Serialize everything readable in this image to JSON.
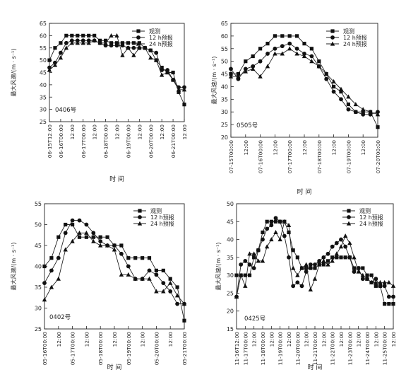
{
  "chart_data": [
    {
      "type": "line",
      "storm_label": "0406号",
      "ylabel": "最大风速/(m · s⁻¹)",
      "xlabel": "时 间",
      "ylim": [
        25,
        65
      ],
      "yticks": [
        25,
        30,
        35,
        40,
        45,
        50,
        55,
        60,
        65
      ],
      "x_range": [
        0,
        24
      ],
      "xticks": [
        {
          "x": 0,
          "label": "06-15T12:00"
        },
        {
          "x": 2,
          "label": "06-16T00:00"
        },
        {
          "x": 4,
          "label": "12:00"
        },
        {
          "x": 6,
          "label": "06-17T00:00"
        },
        {
          "x": 8,
          "label": "12:00"
        },
        {
          "x": 10,
          "label": "06-18T00:00"
        },
        {
          "x": 12,
          "label": "12:00"
        },
        {
          "x": 14,
          "label": "06-19T00:00"
        },
        {
          "x": 16,
          "label": "12:00"
        },
        {
          "x": 18,
          "label": "06-20T00:00"
        },
        {
          "x": 20,
          "label": "12:00"
        },
        {
          "x": 22,
          "label": "06-21T00:00"
        },
        {
          "x": 24,
          "label": "12:00"
        }
      ],
      "legend": [
        "观测",
        "12 h预报",
        "24 h预报"
      ],
      "legend_position": "top-right",
      "series": [
        {
          "name": "观测",
          "marker": "square",
          "x": [
            0,
            1,
            2,
            3,
            4,
            5,
            6,
            7,
            8,
            9,
            10,
            11,
            12,
            13,
            14,
            15,
            16,
            17,
            18,
            19,
            20,
            21,
            22,
            23,
            24
          ],
          "values": [
            50,
            55,
            57,
            60,
            60,
            60,
            60,
            60,
            60,
            58,
            58,
            57,
            57,
            57,
            57,
            57,
            57,
            55,
            54,
            50,
            47,
            45,
            45,
            37,
            32
          ]
        },
        {
          "name": "12 h预报",
          "marker": "circle",
          "x": [
            0,
            1,
            2,
            3,
            4,
            5,
            6,
            7,
            8,
            9,
            10,
            11,
            12,
            13,
            14,
            15,
            16,
            17,
            18,
            19,
            20,
            21,
            22,
            23,
            24
          ],
          "values": [
            47,
            49,
            53,
            57,
            58,
            58,
            58,
            58,
            58,
            57,
            56,
            56,
            56,
            56,
            55,
            55,
            55,
            55,
            54,
            53,
            46,
            46,
            42,
            39,
            39
          ]
        },
        {
          "name": "24 h预报",
          "marker": "triangle",
          "x": [
            0,
            1,
            2,
            3,
            4,
            5,
            6,
            7,
            8,
            9,
            10,
            11,
            12,
            13,
            14,
            15,
            16,
            17,
            18,
            19,
            20,
            21,
            22,
            23,
            24
          ],
          "values": [
            46,
            48,
            51,
            55,
            57,
            57,
            57,
            57,
            58,
            57,
            57,
            60,
            60,
            52,
            55,
            52,
            55,
            55,
            51,
            50,
            44,
            45,
            42,
            38,
            38
          ]
        }
      ]
    },
    {
      "type": "line",
      "storm_label": "0505号",
      "ylabel": "最大风速/(m · s⁻¹)",
      "xlabel": "时 间",
      "ylim": [
        20,
        65
      ],
      "yticks": [
        20,
        25,
        30,
        35,
        40,
        45,
        50,
        55,
        60,
        65
      ],
      "x_range": [
        0,
        20
      ],
      "xticks": [
        {
          "x": 0,
          "label": "07-15T00:00"
        },
        {
          "x": 2,
          "label": "12:00"
        },
        {
          "x": 4,
          "label": "07-16T00:00"
        },
        {
          "x": 6,
          "label": "12:00"
        },
        {
          "x": 8,
          "label": "07-17T00:00"
        },
        {
          "x": 10,
          "label": "12:00"
        },
        {
          "x": 12,
          "label": "07-18T00:00"
        },
        {
          "x": 14,
          "label": "12:00"
        },
        {
          "x": 16,
          "label": "07-19T00:00"
        },
        {
          "x": 18,
          "label": "12:00"
        },
        {
          "x": 20,
          "label": "07-20T00:00"
        }
      ],
      "legend": [
        "观测",
        "12 h预报",
        "24 h预报"
      ],
      "legend_position": "top-right",
      "series": [
        {
          "name": "观测",
          "marker": "square",
          "x": [
            0,
            1,
            2,
            3,
            4,
            5,
            6,
            7,
            8,
            9,
            10,
            11,
            12,
            13,
            14,
            15,
            16,
            17,
            18,
            19,
            20
          ],
          "values": [
            45,
            45,
            50,
            52,
            55,
            57,
            60,
            60,
            60,
            60,
            57,
            55,
            50,
            45,
            40,
            38,
            33,
            30,
            30,
            30,
            24
          ]
        },
        {
          "name": "12 h预报",
          "marker": "circle",
          "x": [
            0,
            1,
            2,
            3,
            4,
            5,
            6,
            7,
            8,
            9,
            10,
            11,
            12,
            13,
            14,
            15,
            16,
            17,
            18,
            19,
            20
          ],
          "values": [
            47,
            43,
            47,
            48,
            50,
            53,
            55,
            56,
            57,
            55,
            53,
            52,
            48,
            43,
            38,
            35,
            31,
            30,
            29,
            29,
            30
          ]
        },
        {
          "name": "24 h预报",
          "marker": "triangle",
          "x": [
            0,
            1,
            2,
            3,
            4,
            5,
            6,
            7,
            8,
            9,
            10,
            11,
            12,
            13,
            14,
            15,
            16,
            17,
            18,
            19,
            20
          ],
          "values": [
            44,
            44,
            46,
            47,
            44,
            48,
            53,
            53,
            55,
            53,
            52,
            50,
            48,
            45,
            42,
            39,
            36,
            33,
            31,
            30,
            29
          ]
        }
      ]
    },
    {
      "type": "line",
      "storm_label": "0402号",
      "ylabel": "最大风速/(m · s⁻¹)",
      "xlabel": "时 间",
      "ylim": [
        25,
        55
      ],
      "yticks": [
        25,
        30,
        35,
        40,
        45,
        50,
        55
      ],
      "x_range": [
        0,
        20
      ],
      "xticks": [
        {
          "x": 0,
          "label": "05-16T00:00"
        },
        {
          "x": 2,
          "label": "12:00"
        },
        {
          "x": 4,
          "label": "05-17T00:00"
        },
        {
          "x": 6,
          "label": "12:00"
        },
        {
          "x": 8,
          "label": "05-18T00:00"
        },
        {
          "x": 10,
          "label": "12:00"
        },
        {
          "x": 12,
          "label": "05-19T00:00"
        },
        {
          "x": 14,
          "label": "12:00"
        },
        {
          "x": 16,
          "label": "05-20T00:00"
        },
        {
          "x": 18,
          "label": "12:00"
        },
        {
          "x": 20,
          "label": "05-21T00:00"
        }
      ],
      "legend": [
        "观测",
        "12 h预报",
        "24 h预报"
      ],
      "legend_position": "top-right",
      "series": [
        {
          "name": "观测",
          "marker": "square",
          "x": [
            0,
            1,
            2,
            3,
            4,
            5,
            6,
            7,
            8,
            9,
            10,
            11,
            12,
            13,
            14,
            15,
            16,
            17,
            18,
            19,
            20
          ],
          "values": [
            40,
            42,
            47,
            50,
            50,
            47,
            47,
            47,
            47,
            47,
            45,
            45,
            42,
            42,
            42,
            42,
            39,
            39,
            37,
            35,
            27
          ]
        },
        {
          "name": "12 h预报",
          "marker": "circle",
          "x": [
            0,
            1,
            2,
            3,
            4,
            5,
            6,
            7,
            8,
            9,
            10,
            11,
            12,
            13,
            14,
            15,
            16,
            17,
            18,
            19,
            20
          ],
          "values": [
            36,
            39,
            42,
            48,
            51,
            51,
            50,
            48,
            46,
            45,
            45,
            43,
            40,
            37,
            37,
            39,
            38,
            36,
            34,
            31,
            31
          ]
        },
        {
          "name": "24 h预报",
          "marker": "triangle",
          "x": [
            0,
            1,
            2,
            3,
            4,
            5,
            6,
            7,
            8,
            9,
            10,
            11,
            12,
            13,
            14,
            15,
            16,
            17,
            18,
            19,
            20
          ],
          "values": [
            32,
            35,
            37,
            44,
            46,
            48,
            48,
            46,
            45,
            45,
            44,
            38,
            38,
            37,
            37,
            37,
            34,
            34,
            36,
            33,
            31
          ]
        }
      ]
    },
    {
      "type": "line",
      "storm_label": "0425号",
      "ylabel": "最大风速/(m · s⁻¹)",
      "xlabel": "时 间",
      "ylim": [
        15,
        50
      ],
      "yticks": [
        15,
        20,
        25,
        30,
        35,
        40,
        45,
        50
      ],
      "x_range": [
        0,
        36
      ],
      "xticks": [
        {
          "x": 0,
          "label": "11-16T12:00"
        },
        {
          "x": 2,
          "label": "11-17T00:00"
        },
        {
          "x": 4,
          "label": "12:00"
        },
        {
          "x": 6,
          "label": "11-18T00:00"
        },
        {
          "x": 8,
          "label": "12:00"
        },
        {
          "x": 10,
          "label": "11-19T00:00"
        },
        {
          "x": 12,
          "label": "12:00"
        },
        {
          "x": 14,
          "label": "11-20T00:00"
        },
        {
          "x": 16,
          "label": "12:00"
        },
        {
          "x": 18,
          "label": "11-21T00:00"
        },
        {
          "x": 20,
          "label": "12:00"
        },
        {
          "x": 22,
          "label": "11-22T00:00"
        },
        {
          "x": 24,
          "label": "12:00"
        },
        {
          "x": 26,
          "label": "11-23T00:00"
        },
        {
          "x": 28,
          "label": "12:00"
        },
        {
          "x": 30,
          "label": "11-24T00:00"
        },
        {
          "x": 32,
          "label": "12:00"
        },
        {
          "x": 34,
          "label": "11-25T00:00"
        },
        {
          "x": 36,
          "label": "12:00"
        }
      ],
      "legend": [
        "观测",
        "12 h预报",
        "24 h预报"
      ],
      "legend_position": "top-right",
      "series": [
        {
          "name": "观测",
          "marker": "square",
          "x": [
            0,
            1,
            2,
            3,
            4,
            5,
            6,
            7,
            8,
            9,
            10,
            11,
            12,
            13,
            14,
            15,
            16,
            17,
            18,
            19,
            20,
            21,
            22,
            23,
            24,
            25,
            26,
            27,
            28,
            29,
            30,
            31,
            32,
            33,
            34,
            35,
            36
          ],
          "values": [
            30,
            30,
            30,
            30,
            35,
            37,
            42,
            45,
            45,
            45,
            45,
            45,
            42,
            37,
            35,
            32,
            32,
            32,
            32,
            33,
            33,
            34,
            35,
            35,
            35,
            35,
            35,
            32,
            32,
            32,
            30,
            30,
            27,
            27,
            22,
            22,
            22
          ]
        },
        {
          "name": "12 h预报",
          "marker": "circle",
          "x": [
            0,
            1,
            2,
            3,
            4,
            5,
            6,
            7,
            8,
            9,
            10,
            11,
            12,
            13,
            14,
            15,
            16,
            17,
            18,
            19,
            20,
            21,
            22,
            23,
            24,
            25,
            26,
            27,
            28,
            29,
            30,
            31,
            32,
            33,
            34,
            35,
            36
          ],
          "values": [
            24,
            33,
            34,
            33,
            32,
            37,
            40,
            43,
            44,
            46,
            45,
            41,
            35,
            27,
            28,
            27,
            31,
            33,
            33,
            34,
            35,
            36,
            38,
            39,
            40,
            38,
            35,
            31,
            32,
            29,
            29,
            28,
            29,
            27,
            27,
            24,
            24
          ]
        },
        {
          "name": "24 h预报",
          "marker": "triangle",
          "x": [
            0,
            1,
            2,
            3,
            4,
            5,
            6,
            7,
            8,
            9,
            10,
            11,
            12,
            13,
            14,
            15,
            16,
            17,
            18,
            19,
            20,
            21,
            22,
            23,
            24,
            25,
            26,
            27,
            28,
            29,
            30,
            31,
            32,
            33,
            34,
            35,
            36
          ],
          "values": [
            24,
            30,
            27,
            36,
            36,
            34,
            34,
            38,
            40,
            42,
            40,
            45,
            44,
            32,
            30,
            32,
            33,
            26,
            29,
            33,
            34,
            33,
            34,
            36,
            38,
            41,
            39,
            35,
            31,
            30,
            29,
            28,
            28,
            28,
            28,
            28,
            27
          ]
        }
      ]
    }
  ]
}
